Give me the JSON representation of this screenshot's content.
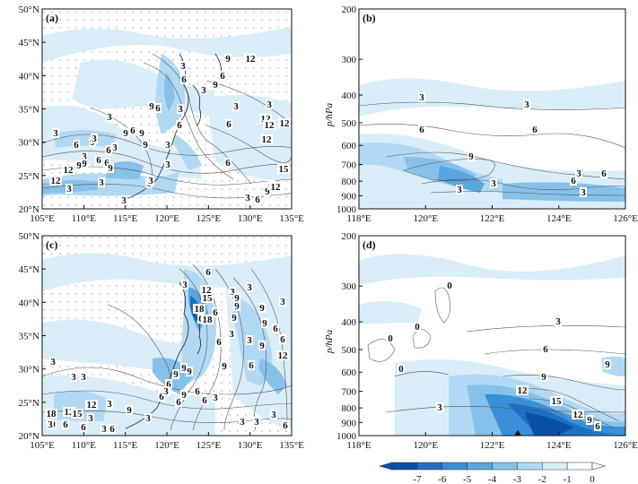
{
  "chart_data": [
    {
      "type": "heatmap",
      "panel_label": "(a)",
      "x_ticks": [
        "105°E",
        "110°E",
        "115°E",
        "120°E",
        "125°E",
        "130°E",
        "135°E"
      ],
      "y_ticks": [
        "20°N",
        "25°N",
        "30°N",
        "35°N",
        "40°N",
        "45°N",
        "50°N"
      ],
      "contour_labels": [
        "3",
        "6",
        "9",
        "3",
        "6",
        "3",
        "9",
        "6",
        "9",
        "3",
        "6",
        "6",
        "3",
        "9",
        "12",
        "9",
        "3",
        "3",
        "6",
        "9",
        "6",
        "12",
        "9",
        "3",
        "3",
        "3",
        "6",
        "9",
        "6",
        "9",
        "12",
        "12",
        "15",
        "6",
        "12",
        "12",
        "3",
        "9",
        "6",
        "3",
        "12",
        "3",
        "3",
        "3",
        "9",
        "3",
        "3",
        "6",
        "12",
        "6",
        "3"
      ]
    },
    {
      "type": "heatmap",
      "panel_label": "(b)",
      "ylabel": "p/hPa",
      "x_ticks": [
        "118°E",
        "120°E",
        "122°E",
        "124°E",
        "126°E"
      ],
      "y_ticks": [
        "200",
        "300",
        "400",
        "500",
        "600",
        "700",
        "800",
        "900",
        "1000"
      ],
      "contour_labels": [
        "3",
        "3",
        "6",
        "6",
        "9",
        "3",
        "6",
        "3",
        "6",
        "3",
        "3"
      ]
    },
    {
      "type": "heatmap",
      "panel_label": "(c)",
      "x_ticks": [
        "105°E",
        "110°E",
        "115°E",
        "120°E",
        "125°E",
        "130°E",
        "135°E"
      ],
      "y_ticks": [
        "20°N",
        "25°N",
        "30°N",
        "35°N",
        "40°N",
        "45°N",
        "50°N"
      ],
      "contour_labels": [
        "6",
        "3",
        "3",
        "12",
        "15",
        "3",
        "9",
        "9",
        "6",
        "6",
        "18",
        "3",
        "18",
        "9",
        "9",
        "3",
        "9",
        "3",
        "9",
        "6",
        "6",
        "6",
        "12",
        "9",
        "3",
        "3",
        "3",
        "9",
        "9",
        "6",
        "6",
        "3",
        "9",
        "6",
        "6",
        "6",
        "3",
        "6",
        "9",
        "12",
        "3",
        "9",
        "18",
        "12",
        "9",
        "15",
        "3",
        "6",
        "3",
        "3",
        "6",
        "6",
        "3",
        "3",
        "3",
        "3",
        "6"
      ]
    },
    {
      "type": "heatmap",
      "panel_label": "(d)",
      "ylabel": "p/hPa",
      "x_ticks": [
        "118°E",
        "120°E",
        "122°E",
        "124°E",
        "126°E"
      ],
      "y_ticks": [
        "200",
        "300",
        "400",
        "500",
        "600",
        "700",
        "800",
        "900",
        "1000"
      ],
      "contour_labels": [
        "0",
        "0",
        "0",
        "0",
        "3",
        "6",
        "9",
        "9",
        "12",
        "15",
        "12",
        "9",
        "6",
        "3"
      ]
    }
  ],
  "colorbar": {
    "ticks": [
      "-7",
      "-6",
      "-5",
      "-4",
      "-3",
      "-2",
      "-1",
      "0"
    ],
    "colors": [
      "#0a4fa8",
      "#1f6fc4",
      "#3a8fd6",
      "#5aa6e0",
      "#86c1ea",
      "#b2d9f3",
      "#d9edf9",
      "#ffffff"
    ]
  }
}
